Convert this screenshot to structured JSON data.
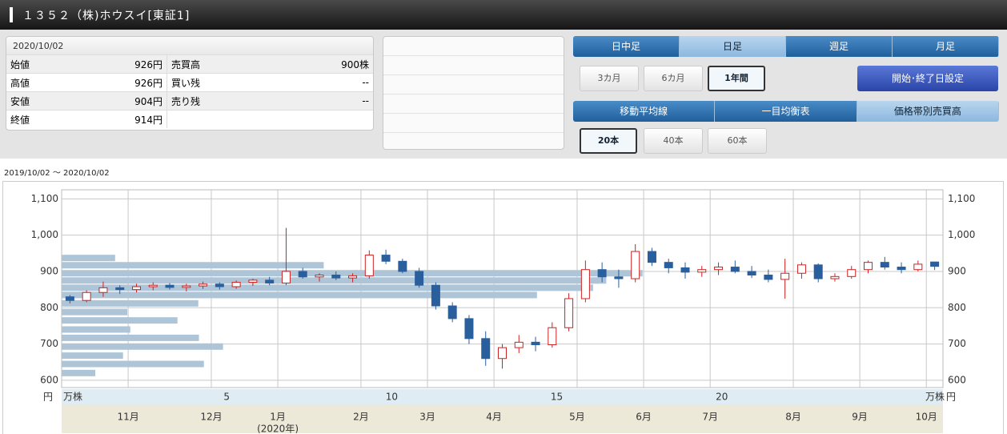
{
  "header": {
    "title": "１３５２（株)ホウスイ[東証1]"
  },
  "info_panel": {
    "date": "2020/10/02",
    "rows": [
      [
        "始値",
        "926円",
        "売買高",
        "900株"
      ],
      [
        "高値",
        "926円",
        "買い残",
        "--"
      ],
      [
        "安値",
        "904円",
        "売り残",
        "--"
      ],
      [
        "終値",
        "914円",
        "",
        ""
      ]
    ]
  },
  "controls": {
    "period_tabs": [
      "日中足",
      "日足",
      "週足",
      "月足"
    ],
    "range_buttons": [
      "3カ月",
      "6カ月",
      "1年間"
    ],
    "date_setting": "開始･終了日設定",
    "indicator_tabs": [
      "移動平均線",
      "一目均衡表",
      "価格帯別売買高"
    ],
    "count_buttons": [
      "20本",
      "40本",
      "60本"
    ]
  },
  "chart_data": {
    "type": "candlestick",
    "date_range": "2019/10/02 〜 2020/10/02",
    "price_unit": "円",
    "volume_unit": "万株",
    "year_note": "(2020年)",
    "categories": [
      null,
      null,
      null,
      null,
      "11月",
      null,
      null,
      null,
      null,
      "12月",
      null,
      null,
      null,
      "1月",
      null,
      null,
      null,
      null,
      "2月",
      null,
      null,
      null,
      "3月",
      null,
      null,
      null,
      "4月",
      null,
      null,
      null,
      null,
      "5月",
      null,
      null,
      null,
      "6月",
      null,
      null,
      null,
      "7月",
      null,
      null,
      null,
      null,
      "8月",
      null,
      null,
      null,
      "9月",
      null,
      null,
      null,
      "10月"
    ],
    "open": [
      830,
      820,
      842,
      855,
      850,
      858,
      862,
      856,
      860,
      865,
      858,
      870,
      876,
      868,
      900,
      885,
      890,
      882,
      888,
      945,
      928,
      900,
      862,
      805,
      770,
      715,
      660,
      690,
      705,
      698,
      745,
      825,
      905,
      885,
      880,
      955,
      925,
      910,
      898,
      905,
      912,
      900,
      890,
      878,
      895,
      918,
      880,
      886,
      905,
      925,
      912,
      905,
      926
    ],
    "high": [
      835,
      848,
      872,
      862,
      866,
      870,
      868,
      866,
      872,
      870,
      875,
      880,
      885,
      1020,
      910,
      895,
      900,
      895,
      958,
      960,
      935,
      910,
      870,
      815,
      780,
      735,
      700,
      725,
      720,
      760,
      840,
      930,
      925,
      905,
      975,
      965,
      935,
      925,
      915,
      925,
      930,
      915,
      905,
      935,
      925,
      922,
      895,
      915,
      930,
      940,
      925,
      930,
      926
    ],
    "low": [
      812,
      815,
      830,
      838,
      842,
      848,
      850,
      845,
      852,
      850,
      852,
      860,
      862,
      862,
      880,
      872,
      876,
      870,
      880,
      920,
      895,
      855,
      795,
      760,
      700,
      640,
      632,
      675,
      680,
      690,
      735,
      815,
      870,
      855,
      870,
      915,
      895,
      880,
      885,
      890,
      895,
      882,
      870,
      825,
      880,
      870,
      872,
      880,
      895,
      905,
      895,
      900,
      904
    ],
    "close": [
      820,
      842,
      855,
      850,
      858,
      862,
      856,
      860,
      865,
      858,
      870,
      876,
      868,
      900,
      885,
      890,
      882,
      888,
      945,
      928,
      900,
      862,
      805,
      770,
      715,
      660,
      690,
      705,
      698,
      745,
      825,
      905,
      885,
      880,
      955,
      925,
      910,
      898,
      905,
      912,
      900,
      890,
      878,
      895,
      918,
      880,
      886,
      905,
      925,
      912,
      905,
      920,
      914
    ],
    "up_color": "#cc2222",
    "down_color": "#2a5f9e",
    "ylim": [
      580,
      1125
    ],
    "yticks": [
      {
        "value": 1100,
        "label": "1,100"
      },
      {
        "value": 1000,
        "label": "1,000"
      },
      900,
      800,
      700,
      600
    ],
    "grid": true,
    "volume_profile": {
      "prices": [
        937,
        917,
        895,
        875,
        855,
        835,
        812,
        788,
        765,
        740,
        717,
        693,
        668,
        645,
        620
      ],
      "values": [
        1.62,
        7.94,
        17.6,
        16.5,
        16.1,
        14.4,
        4.14,
        1.99,
        3.51,
        2.08,
        4.16,
        4.89,
        1.86,
        4.31,
        1.02
      ],
      "color": "#aec5d8",
      "xlim": [
        0,
        26.7
      ],
      "xticks": [
        5,
        10,
        15,
        20
      ]
    }
  }
}
